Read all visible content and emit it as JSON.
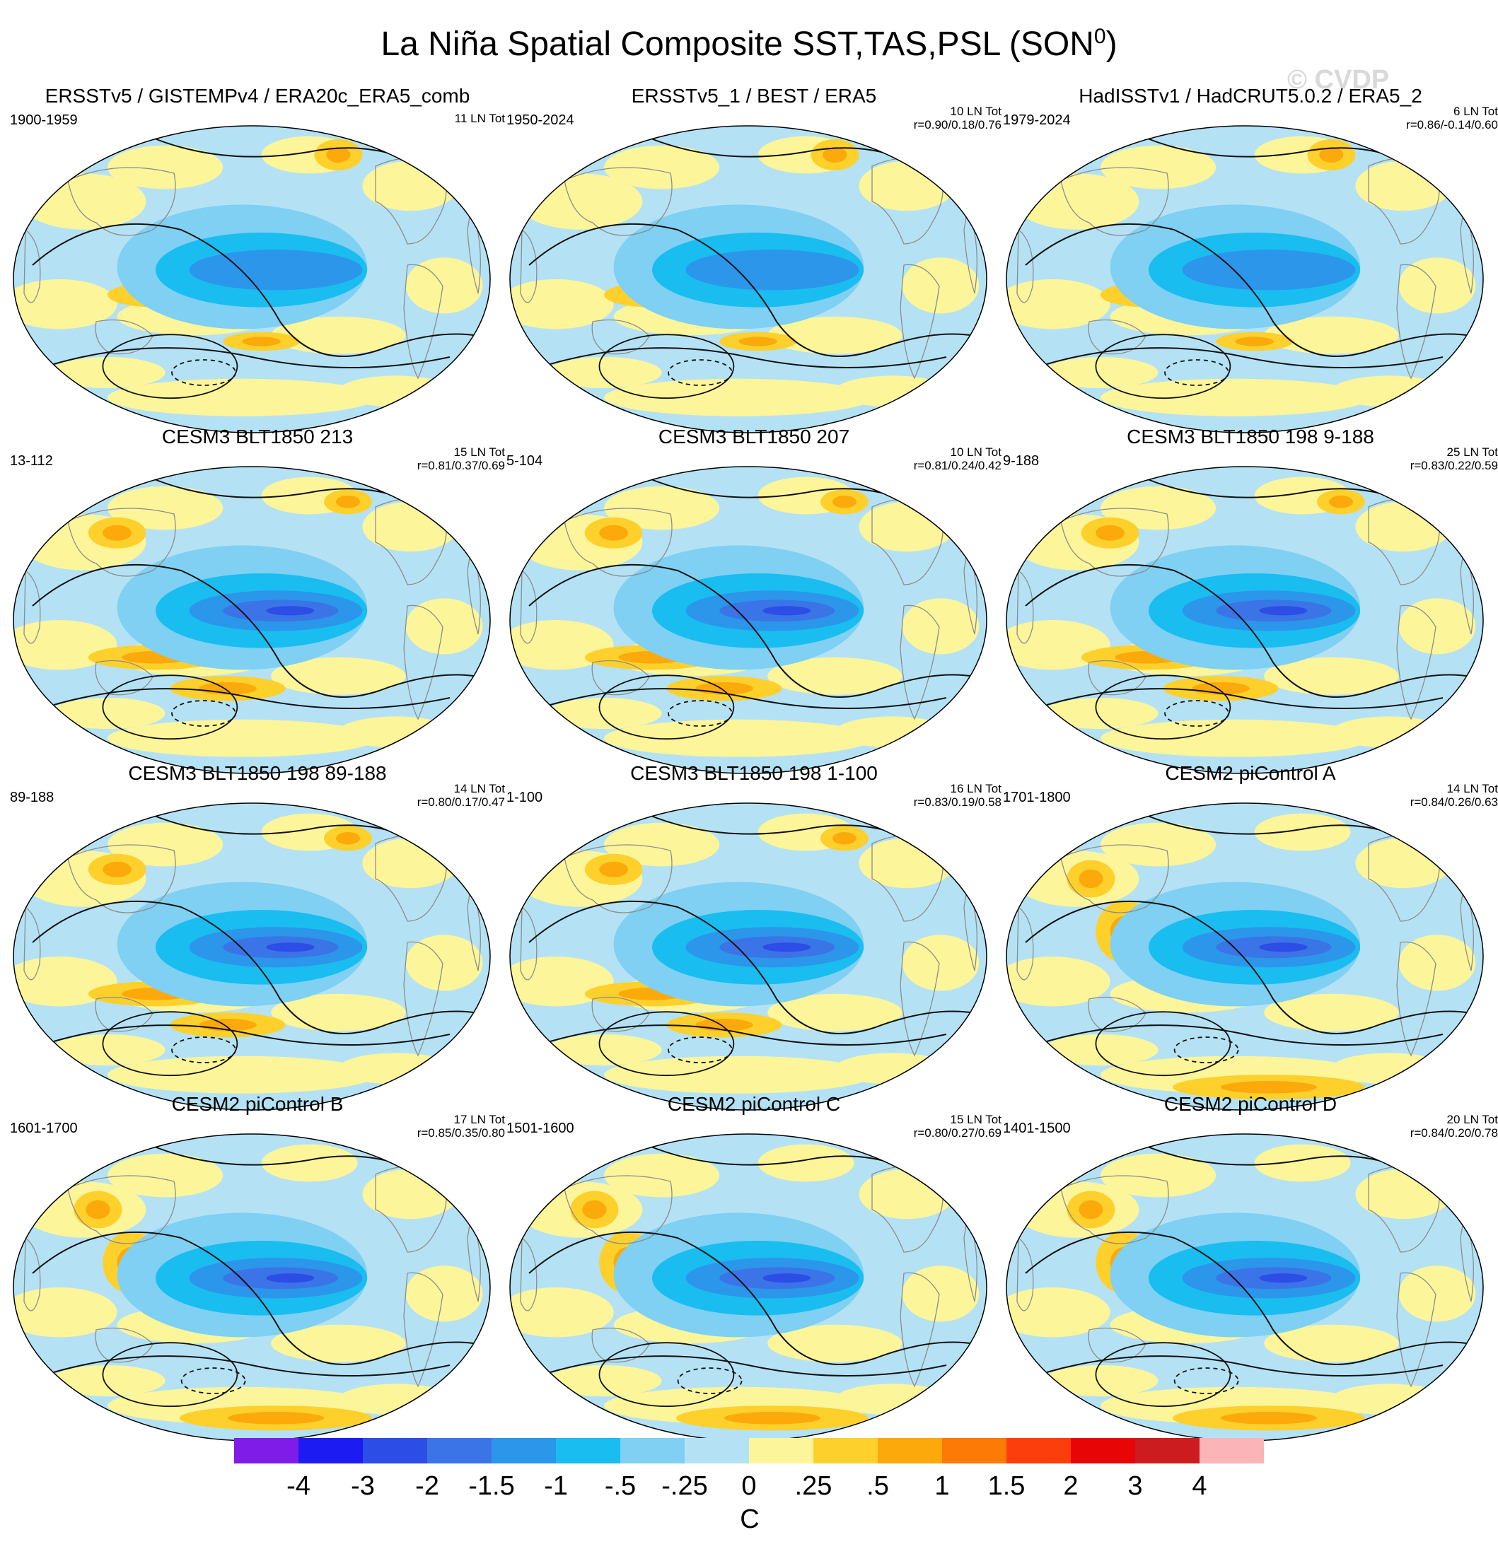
{
  "figure": {
    "title_main": "La Niña Spatial Composite SST,TAS,PSL (SON",
    "title_sup": "0",
    "title_close": ")",
    "watermark": "© CVDP"
  },
  "chart_data": {
    "type": "heatmap",
    "projection": "global map (Robinson-like), Pacific-centered",
    "variables": "SST/TAS shaded, PSL contoured",
    "colorbar": {
      "unit": "C",
      "labels": [
        "-4",
        "-3",
        "-2",
        "-1.5",
        "-1",
        "-.5",
        "-.25",
        "0",
        ".25",
        ".5",
        "1",
        "1.5",
        "2",
        "3",
        "4"
      ],
      "colors": [
        "#7f1ce8",
        "#1c1cf2",
        "#2c4de6",
        "#3b74e6",
        "#2b96ea",
        "#19bdf0",
        "#7fd0f2",
        "#b4e2f4",
        "#fdf59a",
        "#fdd02c",
        "#fca90c",
        "#fc7a05",
        "#fc3d0c",
        "#e80506",
        "#cd1c1f",
        "#fbb4b8"
      ]
    },
    "panels": [
      {
        "title": "ERSSTv5 / GISTEMPv4 / ERA20c_ERA5_comb",
        "period": "1900-1959",
        "count": "11 LN Tot",
        "corr": "",
        "variant": 1
      },
      {
        "title": "ERSSTv5_1 / BEST / ERA5",
        "period": "1950-2024",
        "count": "10 LN Tot",
        "corr": "r=0.90/0.18/0.76",
        "variant": 1
      },
      {
        "title": "HadISSTv1 / HadCRUT5.0.2 / ERA5_2",
        "period": "1979-2024",
        "count": "6 LN Tot",
        "corr": "r=0.86/-0.14/0.60",
        "variant": 1
      },
      {
        "title": "CESM3 BLT1850 213",
        "period": "13-112",
        "count": "15 LN Tot",
        "corr": "r=0.81/0.37/0.69",
        "variant": 2
      },
      {
        "title": "CESM3 BLT1850 207",
        "period": "5-104",
        "count": "10 LN Tot",
        "corr": "r=0.81/0.24/0.42",
        "variant": 2
      },
      {
        "title": "CESM3 BLT1850 198 9-188",
        "period": "9-188",
        "count": "25 LN Tot",
        "corr": "r=0.83/0.22/0.59",
        "variant": 2
      },
      {
        "title": "CESM3 BLT1850 198 89-188",
        "period": "89-188",
        "count": "14 LN Tot",
        "corr": "r=0.80/0.17/0.47",
        "variant": 2
      },
      {
        "title": "CESM3 BLT1850 198 1-100",
        "period": "1-100",
        "count": "16 LN Tot",
        "corr": "r=0.83/0.19/0.58",
        "variant": 2
      },
      {
        "title": "CESM2 piControl A",
        "period": "1701-1800",
        "count": "14 LN Tot",
        "corr": "r=0.84/0.26/0.63",
        "variant": 3
      },
      {
        "title": "CESM2 piControl B",
        "period": "1601-1700",
        "count": "17 LN Tot",
        "corr": "r=0.85/0.35/0.80",
        "variant": 3
      },
      {
        "title": "CESM2 piControl C",
        "period": "1501-1600",
        "count": "15 LN Tot",
        "corr": "r=0.80/0.27/0.69",
        "variant": 3
      },
      {
        "title": "CESM2 piControl D",
        "period": "1401-1500",
        "count": "20 LN Tot",
        "corr": "r=0.84/0.20/0.78",
        "variant": 3
      }
    ]
  }
}
